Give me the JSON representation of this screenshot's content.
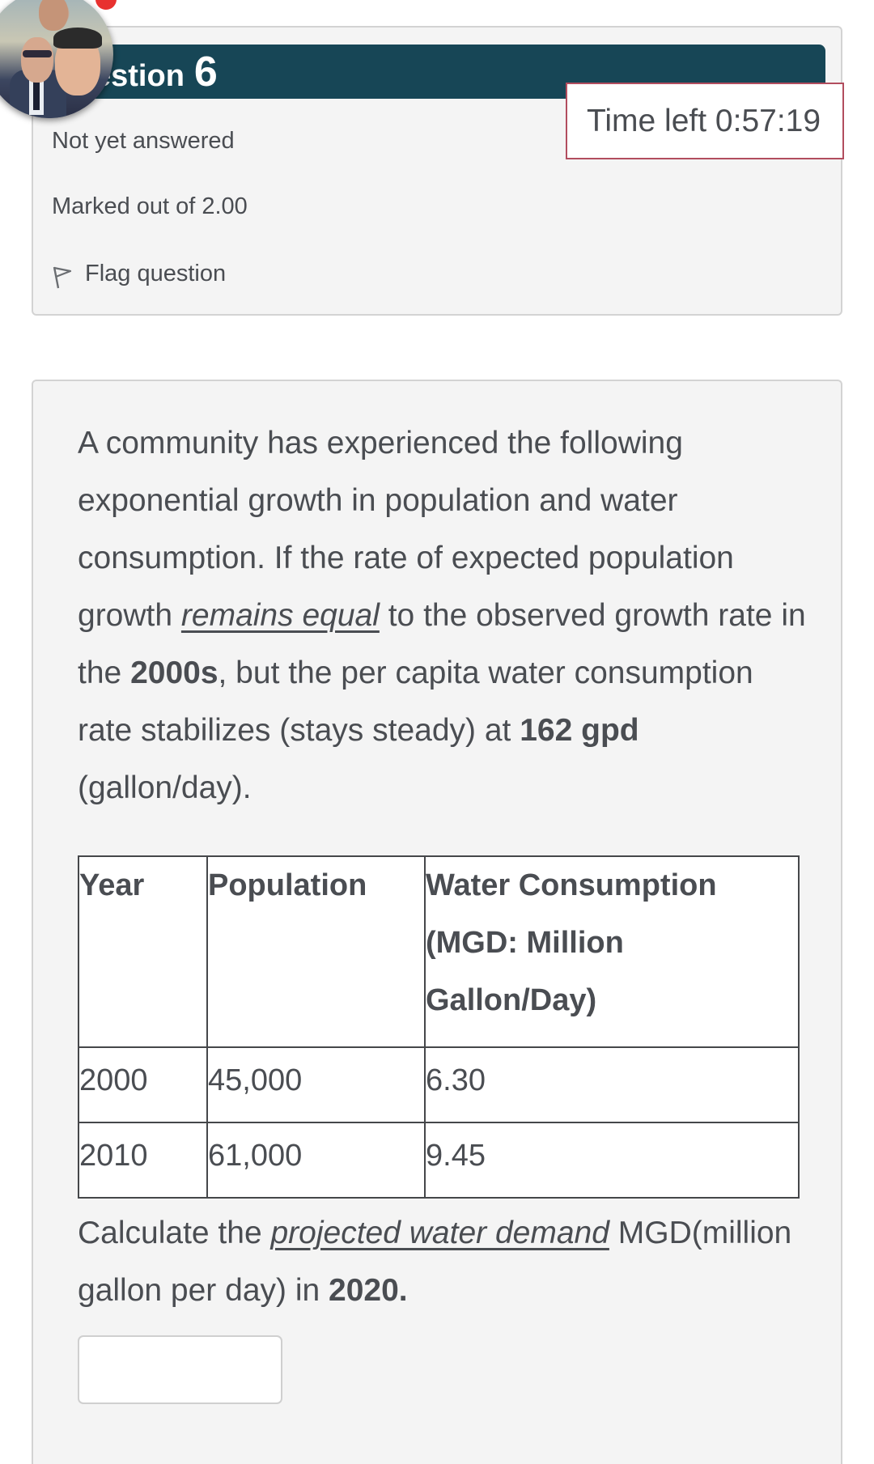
{
  "question": {
    "title_word": "estion",
    "number": "6",
    "status": "Not yet answered",
    "marks": "Marked out of 2.00",
    "flag_label": "Flag question"
  },
  "timer": {
    "text": "Time left 0:57:19"
  },
  "content": {
    "para": {
      "t1": "A community has experienced the following exponential growth in population and water consumption. If the rate of expected population growth ",
      "em1": "remains equal",
      "t2": " to the observed growth rate in the ",
      "b1": "2000s",
      "t3": ", but the per capita water consumption rate stabilizes (stays steady) at ",
      "b2": "162 gpd",
      "t4": " (gallon/day)."
    },
    "table": {
      "headers": [
        "Year",
        "Population",
        "Water Consumption (MGD: Million Gallon/Day)"
      ],
      "rows": [
        [
          "2000",
          "45,000",
          "6.30"
        ],
        [
          "2010",
          "61,000",
          "9.45"
        ]
      ]
    },
    "ask": {
      "t1": "Calculate the ",
      "em1": "projected water demand",
      "t2": " MGD(million gallon per day) in ",
      "b1": "2020."
    },
    "answer": {
      "value": "",
      "placeholder": ""
    }
  },
  "colors": {
    "header_bg": "#174656",
    "timer_border": "#b24d5e",
    "card_bg": "#f4f4f4",
    "text": "#4a4d52"
  }
}
